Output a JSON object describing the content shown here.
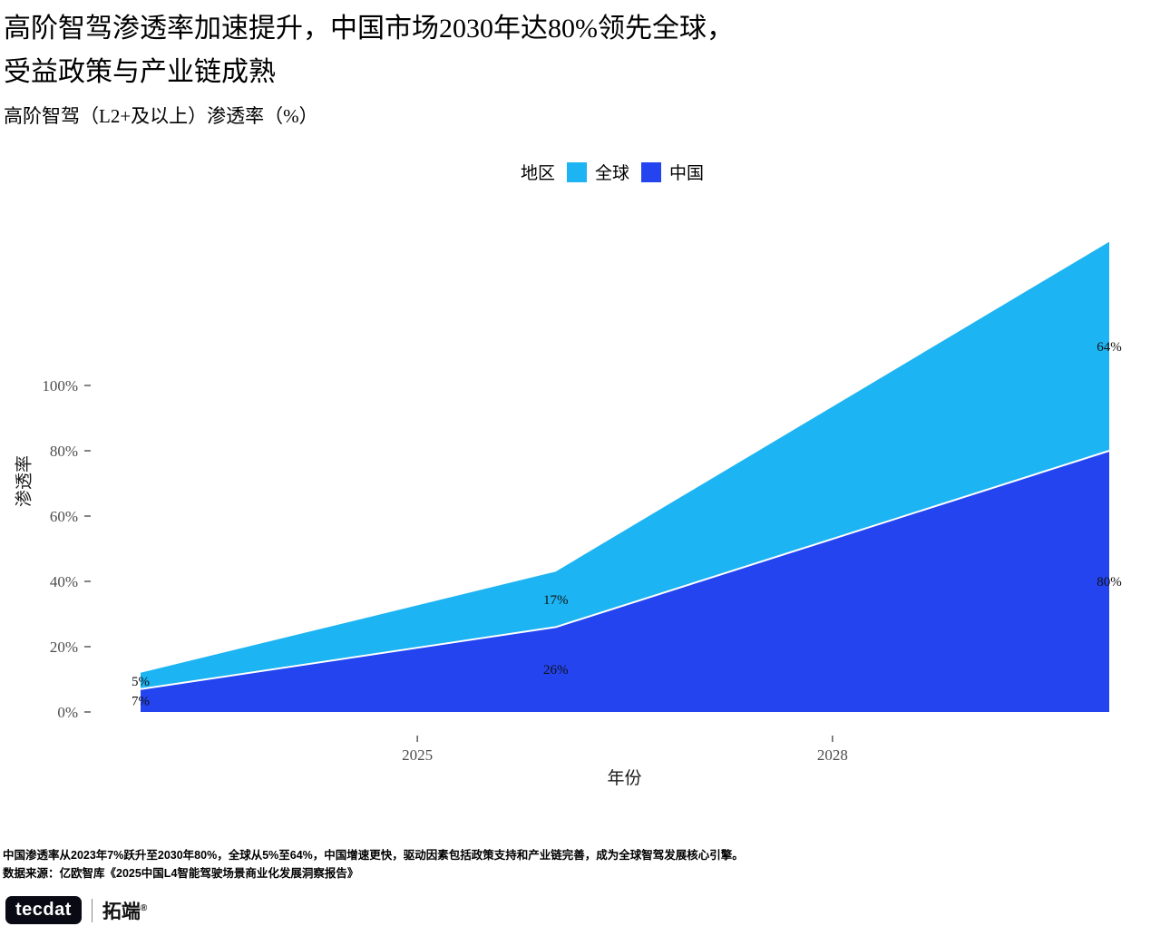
{
  "header": {
    "title_line1": "高阶智驾渗透率加速提升，中国市场2030年达80%领先全球，",
    "title_line2": "受益政策与产业链成熟",
    "subtitle": "高阶智驾（L2+及以上）渗透率（%）"
  },
  "legend": {
    "title": "地区",
    "items": [
      {
        "label": "全球",
        "color": "#1cb4f2"
      },
      {
        "label": "中国",
        "color": "#2344ef"
      }
    ]
  },
  "chart_data": {
    "type": "area",
    "stacked": true,
    "x": [
      2023,
      2026,
      2030
    ],
    "series": [
      {
        "name": "中国",
        "values": [
          7,
          26,
          80
        ],
        "color": "#2344ef"
      },
      {
        "name": "全球",
        "values": [
          5,
          17,
          64
        ],
        "color": "#1cb4f2"
      }
    ],
    "data_labels": [
      "7%",
      "26%",
      "80%",
      "5%",
      "17%",
      "64%"
    ],
    "xlabel": "年份",
    "ylabel": "渗透率",
    "x_ticks": [
      {
        "value": 2025,
        "label": "2025"
      },
      {
        "value": 2028,
        "label": "2028"
      }
    ],
    "y_ticks": [
      {
        "value": 0,
        "label": "0%"
      },
      {
        "value": 20,
        "label": "20%"
      },
      {
        "value": 40,
        "label": "40%"
      },
      {
        "value": 60,
        "label": "60%"
      },
      {
        "value": 80,
        "label": "80%"
      },
      {
        "value": 100,
        "label": "100%"
      }
    ],
    "xlim": [
      2023,
      2030
    ],
    "ylim": [
      0,
      144
    ],
    "grid": false,
    "legend_position": "top",
    "separator_color": "#ffffff",
    "axis_text_color": "#4d4d4d",
    "tick_mark_color": "#333333"
  },
  "caption": "中国渗透率从2023年7%跃升至2030年80%，全球从5%至64%，中国增速更快，驱动因素包括政策支持和产业链完善，成为全球智驾发展核心引擎。",
  "source": "数据来源：亿欧智库《2025中国L4智能驾驶场景商业化发展洞察报告》",
  "logo": {
    "badge": "tecdat",
    "name": "拓端",
    "registered": "®"
  }
}
